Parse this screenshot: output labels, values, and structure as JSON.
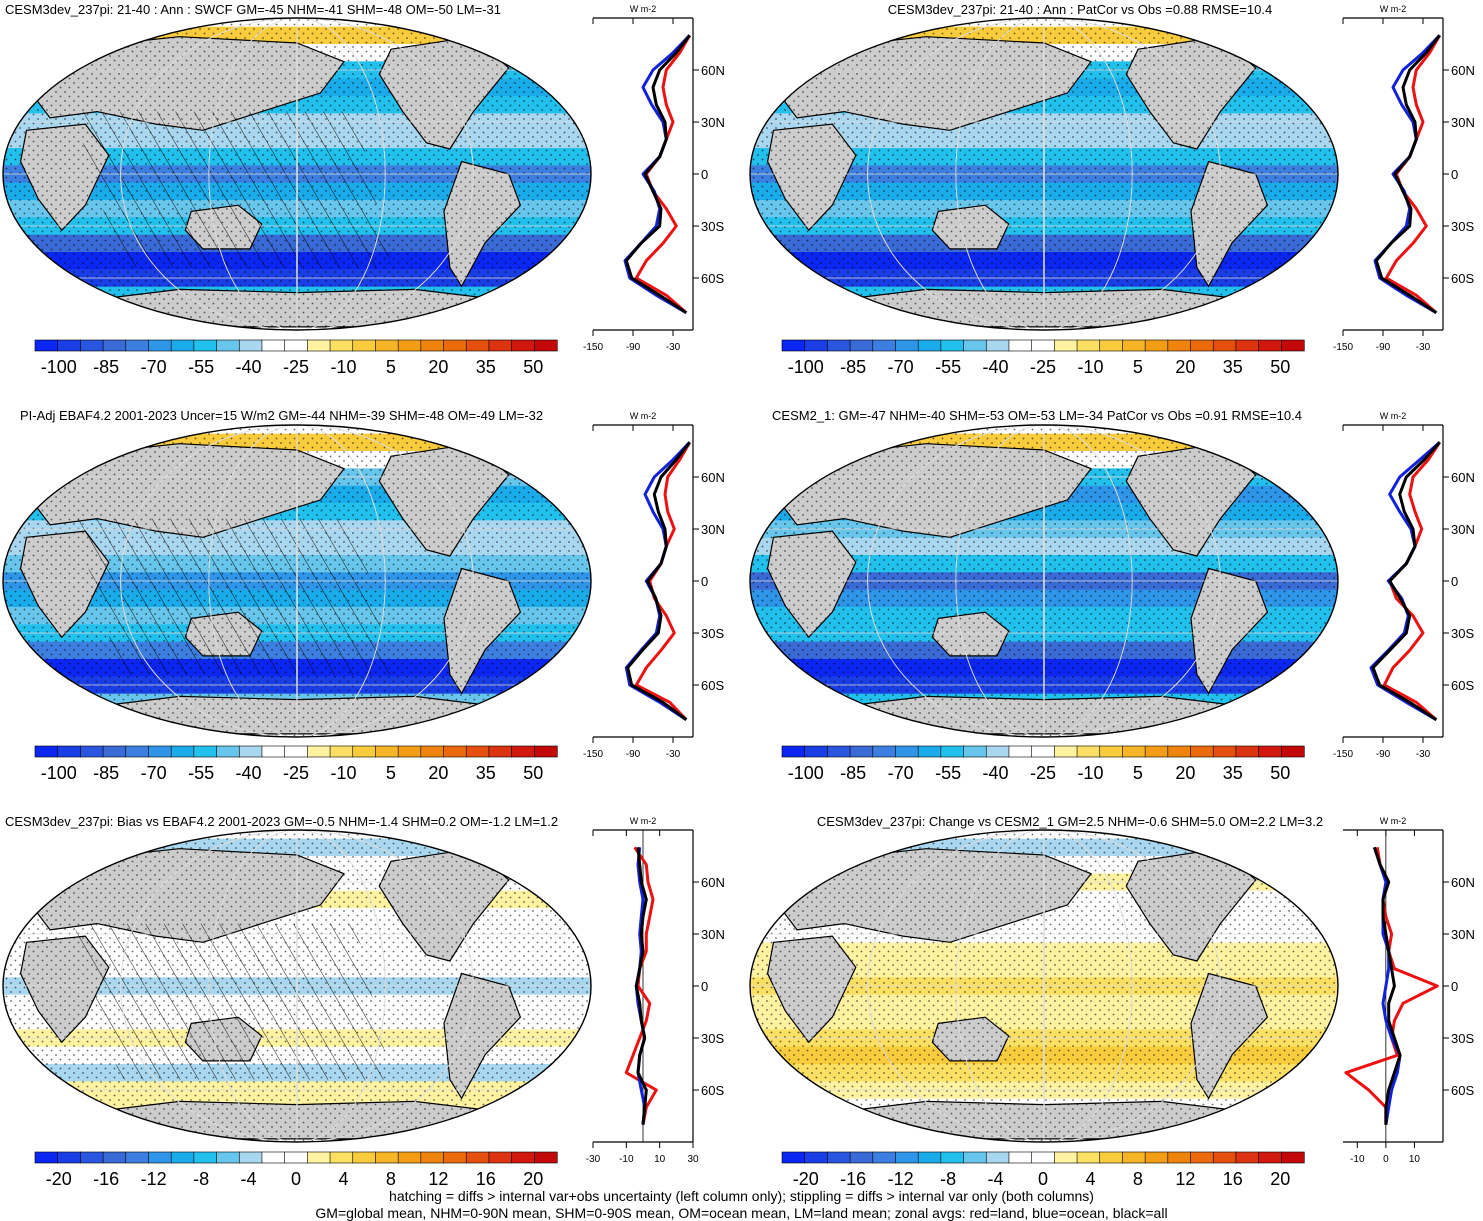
{
  "colors": {
    "diverging_main": [
      "#0c26f2",
      "#1a3ee6",
      "#2a55de",
      "#3a6ad6",
      "#3d7fe0",
      "#2e95e8",
      "#1aabea",
      "#22c0ec",
      "#68c6ec",
      "#a9d7ef",
      "#ffffff",
      "#ffffff",
      "#fff2a0",
      "#fbe064",
      "#f9cc3e",
      "#f6b526",
      "#f39d14",
      "#ef840c",
      "#ea6a0c",
      "#e5500e",
      "#dc3311",
      "#d0180f",
      "#c20808"
    ],
    "diverging_diff": [
      "#0c26f2",
      "#1a3ee6",
      "#2a55de",
      "#3a6ad6",
      "#3d7fe0",
      "#2e95e8",
      "#1aabea",
      "#22c0ec",
      "#68c6ec",
      "#a9d7ef",
      "#ffffff",
      "#ffffff",
      "#fff2a0",
      "#fbe064",
      "#f9cc3e",
      "#f6b526",
      "#f39d14",
      "#ef840c",
      "#ea6a0c",
      "#e5500e",
      "#dc3311",
      "#d0180f",
      "#c20808"
    ],
    "land": "#cccccc",
    "line_land": "#ee1111",
    "line_ocean": "#1122dd",
    "line_all": "#000000"
  },
  "chart_data": [
    {
      "type": "heatmap",
      "title": "CESM3dev_237pi: 21-40 : Ann : SWCF GM=-45 NHM=-41 SHM=-48 OM=-50 LM=-31",
      "colorbar_ticks": [
        "-100",
        "-85",
        "-70",
        "-55",
        "-40",
        "-25",
        "-10",
        "5",
        "20",
        "35",
        "50"
      ],
      "colormap": "main",
      "hatched": true,
      "zonal": {
        "xlim": [
          -150,
          0
        ],
        "xticks": [
          "-150",
          "-90",
          "-30"
        ],
        "xtick_values": [
          -150,
          -90,
          -30
        ],
        "unit": "W m-2",
        "lat_labels": [
          "60N",
          "30N",
          "0",
          "30S",
          "60S"
        ],
        "lat": [
          80,
          70,
          60,
          50,
          40,
          30,
          20,
          10,
          0,
          -10,
          -20,
          -30,
          -40,
          -50,
          -60,
          -70,
          -80
        ],
        "series": [
          {
            "name": "land",
            "color": "red",
            "values": [
              -5,
              -20,
              -40,
              -45,
              -40,
              -30,
              -40,
              -50,
              -70,
              -60,
              -40,
              -25,
              -45,
              -70,
              -85,
              -40,
              -10
            ]
          },
          {
            "name": "ocean",
            "color": "blue",
            "values": [
              -5,
              -30,
              -60,
              -75,
              -62,
              -45,
              -40,
              -50,
              -75,
              -58,
              -50,
              -55,
              -78,
              -102,
              -95,
              -55,
              -10
            ]
          },
          {
            "name": "all",
            "color": "black",
            "values": [
              -5,
              -25,
              -50,
              -60,
              -55,
              -42,
              -40,
              -50,
              -72,
              -60,
              -48,
              -50,
              -78,
              -100,
              -92,
              -50,
              -10
            ]
          }
        ]
      }
    },
    {
      "type": "heatmap",
      "title": "CESM3dev_237pi: 21-40 : Ann : PatCor vs Obs =0.88 RMSE=10.4",
      "colorbar_ticks": [
        "-100",
        "-85",
        "-70",
        "-55",
        "-40",
        "-25",
        "-10",
        "5",
        "20",
        "35",
        "50"
      ],
      "colormap": "main",
      "hatched": false,
      "zonal": {
        "xlim": [
          -150,
          0
        ],
        "xticks": [
          "-150",
          "-90",
          "-30"
        ],
        "xtick_values": [
          -150,
          -90,
          -30
        ],
        "unit": "W m-2",
        "lat_labels": [
          "60N",
          "30N",
          "0",
          "30S",
          "60S"
        ],
        "lat": [
          80,
          70,
          60,
          50,
          40,
          30,
          20,
          10,
          0,
          -10,
          -20,
          -30,
          -40,
          -50,
          -60,
          -70,
          -80
        ],
        "series": [
          {
            "name": "land",
            "color": "red",
            "values": [
              -5,
              -20,
              -40,
              -45,
              -40,
              -30,
              -40,
              -50,
              -70,
              -60,
              -40,
              -25,
              -45,
              -70,
              -85,
              -40,
              -10
            ]
          },
          {
            "name": "ocean",
            "color": "blue",
            "values": [
              -5,
              -30,
              -60,
              -75,
              -62,
              -45,
              -40,
              -50,
              -75,
              -58,
              -50,
              -55,
              -78,
              -102,
              -95,
              -55,
              -10
            ]
          },
          {
            "name": "all",
            "color": "black",
            "values": [
              -5,
              -25,
              -50,
              -60,
              -55,
              -42,
              -40,
              -50,
              -72,
              -60,
              -48,
              -50,
              -78,
              -100,
              -92,
              -50,
              -10
            ]
          }
        ]
      }
    },
    {
      "type": "heatmap",
      "title": "PI-Adj EBAF4.2 2001-2023 Uncer=15 W/m2 GM=-44 NHM=-39 SHM=-48 OM=-49 LM=-32",
      "colorbar_ticks": [
        "-100",
        "-85",
        "-70",
        "-55",
        "-40",
        "-25",
        "-10",
        "5",
        "20",
        "35",
        "50"
      ],
      "colormap": "main",
      "hatched": true,
      "zonal": {
        "xlim": [
          -150,
          0
        ],
        "xticks": [
          "-150",
          "-90",
          "-30"
        ],
        "xtick_values": [
          -150,
          -90,
          -30
        ],
        "unit": "W m-2",
        "lat_labels": [
          "60N",
          "30N",
          "0",
          "30S",
          "60S"
        ],
        "lat": [
          80,
          70,
          60,
          50,
          40,
          30,
          20,
          10,
          0,
          -10,
          -20,
          -30,
          -40,
          -50,
          -60,
          -70,
          -80
        ],
        "series": [
          {
            "name": "land",
            "color": "red",
            "values": [
              -5,
              -20,
              -38,
              -42,
              -38,
              -28,
              -40,
              -48,
              -65,
              -58,
              -40,
              -28,
              -48,
              -70,
              -85,
              -35,
              -10
            ]
          },
          {
            "name": "ocean",
            "color": "blue",
            "values": [
              -5,
              -30,
              -58,
              -72,
              -60,
              -45,
              -40,
              -48,
              -70,
              -56,
              -50,
              -55,
              -78,
              -100,
              -95,
              -50,
              -10
            ]
          },
          {
            "name": "all",
            "color": "black",
            "values": [
              -5,
              -25,
              -48,
              -58,
              -52,
              -42,
              -40,
              -48,
              -68,
              -56,
              -48,
              -52,
              -76,
              -98,
              -92,
              -45,
              -10
            ]
          }
        ]
      }
    },
    {
      "type": "heatmap",
      "title": "CESM2_1: GM=-47 NHM=-40 SHM=-53 OM=-53 LM=-34 PatCor vs Obs =0.91 RMSE=10.4",
      "colorbar_ticks": [
        "-100",
        "-85",
        "-70",
        "-55",
        "-40",
        "-25",
        "-10",
        "5",
        "20",
        "35",
        "50"
      ],
      "colormap": "main",
      "hatched": false,
      "zonal": {
        "xlim": [
          -150,
          0
        ],
        "xticks": [
          "-150",
          "-90",
          "-30"
        ],
        "xtick_values": [
          -150,
          -90,
          -30
        ],
        "unit": "W m-2",
        "lat_labels": [
          "60N",
          "30N",
          "0",
          "30S",
          "60S"
        ],
        "lat": [
          80,
          70,
          60,
          50,
          40,
          30,
          20,
          10,
          0,
          -10,
          -20,
          -30,
          -40,
          -50,
          -60,
          -70,
          -80
        ],
        "series": [
          {
            "name": "land",
            "color": "red",
            "values": [
              -5,
              -22,
              -45,
              -50,
              -42,
              -32,
              -42,
              -55,
              -80,
              -70,
              -45,
              -30,
              -50,
              -75,
              -88,
              -40,
              -10
            ]
          },
          {
            "name": "ocean",
            "color": "blue",
            "values": [
              -5,
              -35,
              -65,
              -80,
              -65,
              -48,
              -42,
              -55,
              -82,
              -62,
              -52,
              -58,
              -82,
              -108,
              -98,
              -55,
              -10
            ]
          },
          {
            "name": "all",
            "color": "black",
            "values": [
              -5,
              -28,
              -55,
              -65,
              -58,
              -45,
              -42,
              -55,
              -80,
              -64,
              -50,
              -55,
              -80,
              -105,
              -95,
              -50,
              -10
            ]
          }
        ]
      }
    },
    {
      "type": "heatmap",
      "title": "CESM3dev_237pi: Bias vs EBAF4.2 2001-2023 GM=-0.5 NHM=-1.4 SHM=0.2 OM=-1.2 LM=1.2",
      "colorbar_ticks": [
        "-20",
        "-16",
        "-12",
        "-8",
        "-4",
        "0",
        "4",
        "8",
        "12",
        "16",
        "20"
      ],
      "colormap": "diff",
      "hatched": true,
      "zonal": {
        "xlim": [
          -30,
          30
        ],
        "xticks": [
          "-30",
          "-10",
          "10",
          "30"
        ],
        "xtick_values": [
          -30,
          -10,
          10,
          30
        ],
        "unit": "W m-2",
        "lat_labels": [
          "60N",
          "30N",
          "0",
          "30S",
          "60S"
        ],
        "lat": [
          80,
          70,
          60,
          50,
          40,
          30,
          20,
          10,
          0,
          -10,
          -20,
          -30,
          -40,
          -50,
          -60,
          -70,
          -80
        ],
        "series": [
          {
            "name": "land",
            "color": "red",
            "values": [
              -5,
              2,
              3,
              6,
              4,
              2,
              2,
              -2,
              -3,
              4,
              2,
              -2,
              -6,
              -10,
              8,
              2,
              0
            ]
          },
          {
            "name": "ocean",
            "color": "blue",
            "values": [
              -2,
              -3,
              -2,
              0,
              -1,
              -2,
              -1,
              -2,
              -4,
              -3,
              -1,
              1,
              -2,
              -3,
              -1,
              1,
              0
            ]
          },
          {
            "name": "all",
            "color": "black",
            "values": [
              -3,
              -2,
              -1,
              2,
              0,
              -1,
              0,
              -2,
              -4,
              -2,
              -1,
              1,
              -2,
              -3,
              2,
              1,
              0
            ]
          }
        ]
      }
    },
    {
      "type": "heatmap",
      "title": "CESM3dev_237pi: Change vs CESM2_1 GM=2.5 NHM=-0.6 SHM=5.0 OM=2.2 LM=3.2",
      "colorbar_ticks": [
        "-20",
        "-16",
        "-12",
        "-8",
        "-4",
        "0",
        "4",
        "8",
        "12",
        "16",
        "20"
      ],
      "colormap": "diff",
      "hatched": false,
      "zonal": {
        "xlim": [
          -15,
          20
        ],
        "xticks": [
          "-10",
          "0",
          "10"
        ],
        "xtick_values": [
          -10,
          0,
          10
        ],
        "unit": "W m-2",
        "lat_labels": [
          "60N",
          "30N",
          "0",
          "30S",
          "60S"
        ],
        "lat": [
          80,
          70,
          60,
          50,
          40,
          30,
          20,
          10,
          0,
          -10,
          -20,
          -30,
          -40,
          -50,
          -60,
          -70,
          -80
        ],
        "series": [
          {
            "name": "land",
            "color": "red",
            "values": [
              -3,
              -2,
              1,
              -1,
              0,
              2,
              1,
              3,
              18,
              6,
              3,
              2,
              4,
              -14,
              -6,
              0,
              0
            ]
          },
          {
            "name": "ocean",
            "color": "blue",
            "values": [
              -4,
              -2,
              0,
              -1,
              -1,
              -1,
              1,
              1,
              0,
              -1,
              0,
              2,
              5,
              4,
              2,
              1,
              0
            ]
          },
          {
            "name": "all",
            "color": "black",
            "values": [
              -4,
              -2,
              1,
              -1,
              -1,
              0,
              1,
              2,
              3,
              1,
              1,
              3,
              5,
              3,
              1,
              0,
              0
            ]
          }
        ]
      }
    }
  ],
  "footer": {
    "line1": "hatching = diffs > internal var+obs uncertainty (left column only); stippling = diffs > internal var only (both columns)",
    "line2": "GM=global mean, NHM=0-90N mean, SHM=0-90S mean, OM=ocean mean, LM=land mean; zonal avgs: red=land, blue=ocean, black=all"
  }
}
